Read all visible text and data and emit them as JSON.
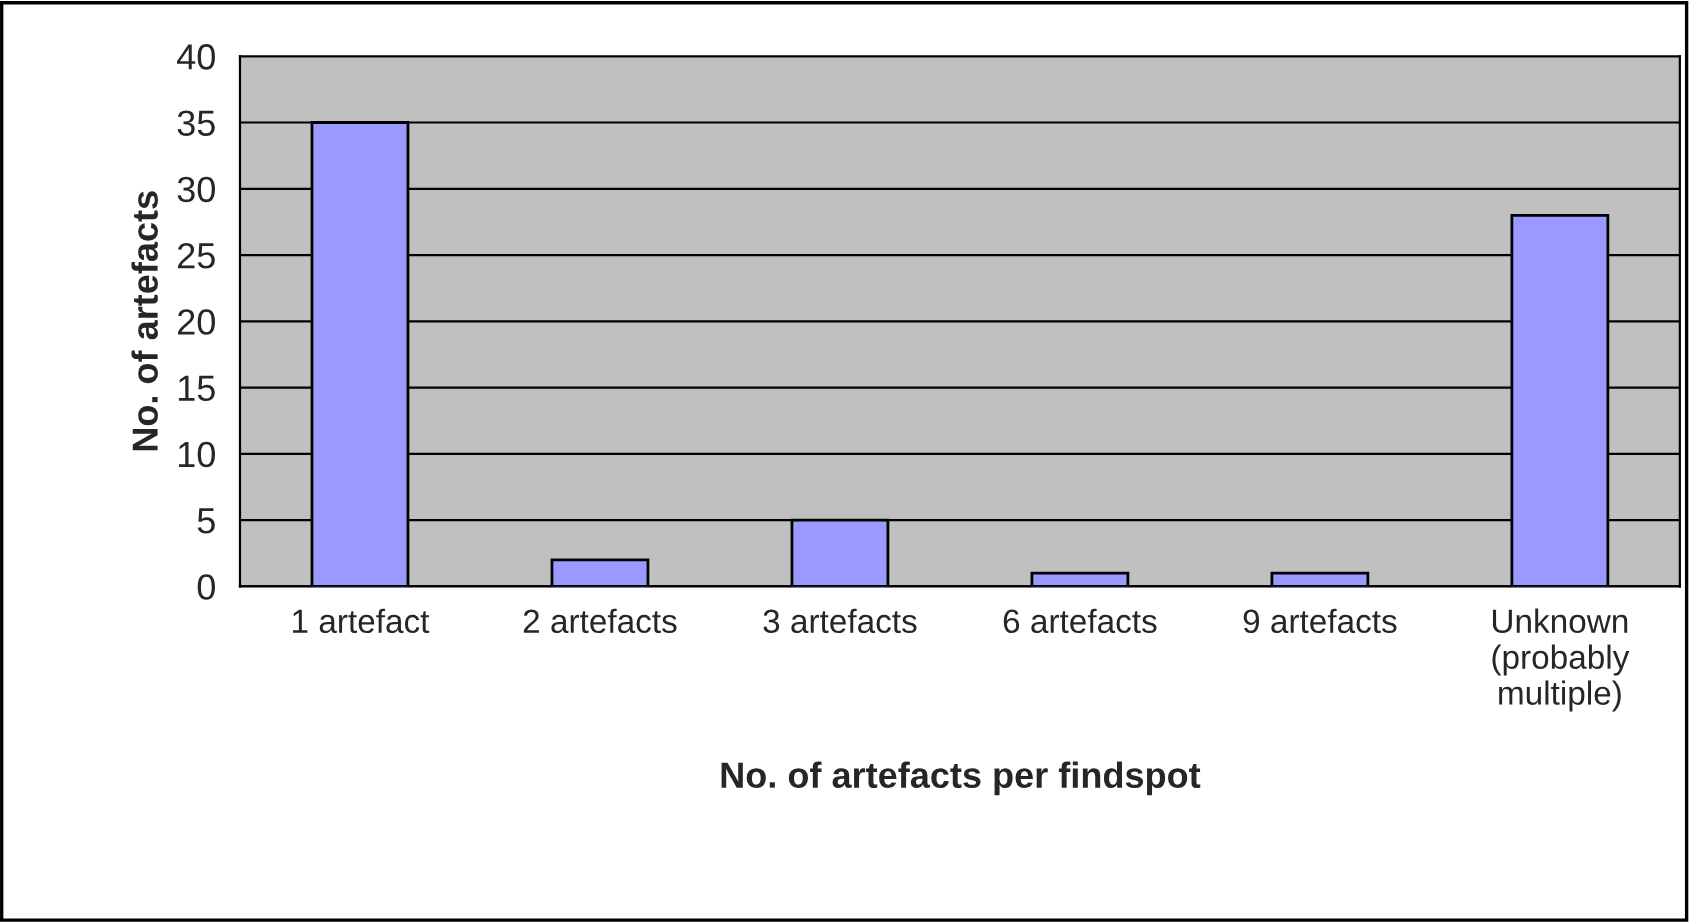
{
  "chart_data": {
    "type": "bar",
    "xlabel": "No. of artefacts per findspot",
    "ylabel": "No. of artefacts",
    "categories": [
      "1 artefact",
      "2 artefacts",
      "3 artefacts",
      "6 artefacts",
      "9 artefacts",
      "Unknown\n(probably\nmultiple)"
    ],
    "values": [
      35,
      2,
      5,
      1,
      1,
      28
    ],
    "color": "#9999ff",
    "ylim": [
      0,
      40
    ],
    "yticks": [
      0,
      5,
      10,
      15,
      20,
      25,
      30,
      35,
      40
    ],
    "grid": "y",
    "legend": false
  }
}
